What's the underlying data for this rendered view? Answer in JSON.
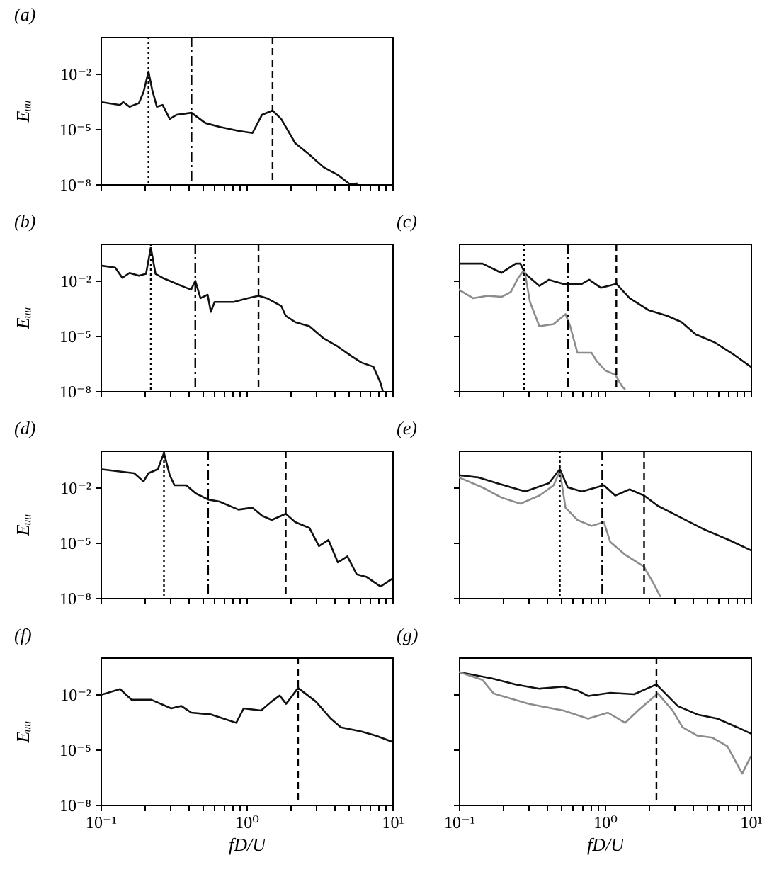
{
  "chart_data": [
    {
      "type": "line",
      "title": "(a)",
      "ylabel": "Eᵤᵤ",
      "log": "xy",
      "xlim": [
        0.1,
        10
      ],
      "ylim": [
        1e-08,
        1
      ],
      "tick_labels": "y",
      "xticks": [
        {
          "value": 0.1,
          "label": null
        },
        {
          "value": 0.2,
          "label": null
        },
        {
          "value": 0.3,
          "label": null
        },
        {
          "value": 0.4,
          "label": null
        },
        {
          "value": 0.5,
          "label": null
        },
        {
          "value": 0.6,
          "label": null
        },
        {
          "value": 0.7,
          "label": null
        },
        {
          "value": 0.8,
          "label": null
        },
        {
          "value": 0.9,
          "label": null
        },
        {
          "value": 1,
          "label": null
        },
        {
          "value": 2,
          "label": null
        },
        {
          "value": 3,
          "label": null
        },
        {
          "value": 4,
          "label": null
        },
        {
          "value": 5,
          "label": null
        },
        {
          "value": 6,
          "label": null
        },
        {
          "value": 7,
          "label": null
        },
        {
          "value": 8,
          "label": null
        },
        {
          "value": 9,
          "label": null
        },
        {
          "value": 10,
          "label": null
        }
      ],
      "yticks": [
        {
          "value": 1e-08,
          "label": "10⁻⁸"
        },
        {
          "value": 1e-05,
          "label": "10⁻⁵"
        },
        {
          "value": 0.01,
          "label": "10⁻²"
        }
      ],
      "series": [
        {
          "color": "#111111",
          "x": [
            0.1,
            0.136,
            0.143,
            0.158,
            0.183,
            0.197,
            0.213,
            0.226,
            0.243,
            0.266,
            0.298,
            0.333,
            0.42,
            0.522,
            0.653,
            0.881,
            1.1,
            1.28,
            1.51,
            1.73,
            2.16,
            2.7,
            3.38,
            4.23,
            5.11,
            5.7
          ],
          "values": [
            0.00029,
            0.0002,
            0.00029,
            0.00016,
            0.00025,
            0.001,
            0.013,
            0.0013,
            0.00016,
            0.0002,
            3.5e-05,
            5.9e-05,
            7.6e-05,
            2.1e-05,
            1.3e-05,
            7.9e-06,
            6e-06,
            5.9e-05,
            0.0001,
            3.5e-05,
            1.7e-06,
            4e-07,
            8.3e-08,
            3.2e-08,
            1e-08,
            1.1e-08
          ]
        }
      ],
      "ref_lines": [
        {
          "axis": "x",
          "value": 0.213,
          "line_style": "dotted"
        },
        {
          "axis": "x",
          "value": 0.42,
          "line_style": "dashdot"
        },
        {
          "axis": "x",
          "value": 1.51,
          "line_style": "dashed"
        }
      ]
    },
    {
      "type": "line",
      "title": "(b)",
      "ylabel": "Eᵤᵤ",
      "log": "xy",
      "xlim": [
        0.1,
        10
      ],
      "ylim": [
        1e-08,
        1
      ],
      "tick_labels": "y",
      "xticks": [
        {
          "value": 0.1,
          "label": null
        },
        {
          "value": 0.2,
          "label": null
        },
        {
          "value": 0.3,
          "label": null
        },
        {
          "value": 0.4,
          "label": null
        },
        {
          "value": 0.5,
          "label": null
        },
        {
          "value": 0.6,
          "label": null
        },
        {
          "value": 0.7,
          "label": null
        },
        {
          "value": 0.8,
          "label": null
        },
        {
          "value": 0.9,
          "label": null
        },
        {
          "value": 1,
          "label": null
        },
        {
          "value": 2,
          "label": null
        },
        {
          "value": 3,
          "label": null
        },
        {
          "value": 4,
          "label": null
        },
        {
          "value": 5,
          "label": null
        },
        {
          "value": 6,
          "label": null
        },
        {
          "value": 7,
          "label": null
        },
        {
          "value": 8,
          "label": null
        },
        {
          "value": 9,
          "label": null
        },
        {
          "value": 10,
          "label": null
        }
      ],
      "yticks": [
        {
          "value": 1e-08,
          "label": "10⁻⁸"
        },
        {
          "value": 1e-05,
          "label": "10⁻⁵"
        },
        {
          "value": 0.01,
          "label": "10⁻²"
        }
      ],
      "series": [
        {
          "color": "#111111",
          "x": [
            0.1,
            0.126,
            0.141,
            0.158,
            0.183,
            0.205,
            0.221,
            0.238,
            0.266,
            0.359,
            0.417,
            0.446,
            0.484,
            0.542,
            0.57,
            0.605,
            0.817,
            1.02,
            1.21,
            1.38,
            1.73,
            1.86,
            2.16,
            2.7,
            3.38,
            4.23,
            5.3,
            6.15,
            7.41,
            8.3,
            8.6
          ],
          "values": [
            0.065,
            0.05,
            0.014,
            0.026,
            0.018,
            0.023,
            0.63,
            0.023,
            0.014,
            0.0051,
            0.0032,
            0.0096,
            0.0011,
            0.0017,
            0.0002,
            0.00069,
            0.00069,
            0.0011,
            0.0015,
            0.0011,
            0.00042,
            0.00012,
            5.5e-05,
            3.3e-05,
            7.2e-06,
            2.6e-06,
            7.4e-07,
            3.5e-07,
            2.1e-07,
            2.8e-08,
            1e-08
          ]
        }
      ],
      "ref_lines": [
        {
          "axis": "x",
          "value": 0.221,
          "line_style": "dotted"
        },
        {
          "axis": "x",
          "value": 0.446,
          "line_style": "dashdot"
        },
        {
          "axis": "x",
          "value": 1.21,
          "line_style": "dashed"
        }
      ]
    },
    {
      "type": "line",
      "title": "(c)",
      "log": "xy",
      "xlim": [
        0.1,
        10
      ],
      "ylim": [
        1e-08,
        1
      ],
      "tick_labels": false,
      "xticks": [
        {
          "value": 0.1,
          "label": null
        },
        {
          "value": 0.2,
          "label": null
        },
        {
          "value": 0.3,
          "label": null
        },
        {
          "value": 0.4,
          "label": null
        },
        {
          "value": 0.5,
          "label": null
        },
        {
          "value": 0.6,
          "label": null
        },
        {
          "value": 0.7,
          "label": null
        },
        {
          "value": 0.8,
          "label": null
        },
        {
          "value": 0.9,
          "label": null
        },
        {
          "value": 1,
          "label": null
        },
        {
          "value": 2,
          "label": null
        },
        {
          "value": 3,
          "label": null
        },
        {
          "value": 4,
          "label": null
        },
        {
          "value": 5,
          "label": null
        },
        {
          "value": 6,
          "label": null
        },
        {
          "value": 7,
          "label": null
        },
        {
          "value": 8,
          "label": null
        },
        {
          "value": 9,
          "label": null
        },
        {
          "value": 10,
          "label": null
        }
      ],
      "yticks": [
        {
          "value": 1e-08,
          "label": null
        },
        {
          "value": 1e-05,
          "label": null
        },
        {
          "value": 0.01,
          "label": null
        }
      ],
      "series": [
        {
          "color": "#111111",
          "x": [
            0.1,
            0.145,
            0.196,
            0.245,
            0.264,
            0.285,
            0.356,
            0.414,
            0.518,
            0.558,
            0.698,
            0.782,
            0.942,
            1.2,
            1.48,
            1.99,
            2.69,
            3.36,
            4.2,
            5.66,
            7.64,
            10
          ],
          "values": [
            0.083,
            0.083,
            0.026,
            0.083,
            0.083,
            0.023,
            0.0051,
            0.011,
            0.0066,
            0.0066,
            0.0066,
            0.011,
            0.004,
            0.0066,
            0.0011,
            0.00025,
            0.00012,
            5.5e-05,
            1.2e-05,
            4.4e-06,
            9.6e-07,
            2.1e-07
          ]
        },
        {
          "color": "#8c8c8c",
          "x": [
            0.1,
            0.125,
            0.157,
            0.196,
            0.227,
            0.255,
            0.281,
            0.307,
            0.356,
            0.446,
            0.538,
            0.579,
            0.649,
            0.811,
            0.875,
            1.01,
            1.18,
            1.32,
            1.37
          ],
          "values": [
            0.0032,
            0.0011,
            0.0015,
            0.0013,
            0.0024,
            0.014,
            0.039,
            0.00069,
            3.3e-05,
            4.3e-05,
            0.00015,
            3.3e-05,
            1.2e-06,
            1.2e-06,
            4.5e-07,
            1.3e-07,
            7.6e-08,
            1.7e-08,
            1.3e-08
          ]
        }
      ],
      "ref_lines": [
        {
          "axis": "x",
          "value": 0.28,
          "line_style": "dotted"
        },
        {
          "axis": "x",
          "value": 0.558,
          "line_style": "dashdot"
        },
        {
          "axis": "x",
          "value": 1.2,
          "line_style": "dashed"
        }
      ]
    },
    {
      "type": "line",
      "title": "(d)",
      "ylabel": "Eᵤᵤ",
      "log": "xy",
      "xlim": [
        0.1,
        10
      ],
      "ylim": [
        1e-08,
        1
      ],
      "tick_labels": "y",
      "xticks": [
        {
          "value": 0.1,
          "label": null
        },
        {
          "value": 0.2,
          "label": null
        },
        {
          "value": 0.3,
          "label": null
        },
        {
          "value": 0.4,
          "label": null
        },
        {
          "value": 0.5,
          "label": null
        },
        {
          "value": 0.6,
          "label": null
        },
        {
          "value": 0.7,
          "label": null
        },
        {
          "value": 0.8,
          "label": null
        },
        {
          "value": 0.9,
          "label": null
        },
        {
          "value": 1,
          "label": null
        },
        {
          "value": 2,
          "label": null
        },
        {
          "value": 3,
          "label": null
        },
        {
          "value": 4,
          "label": null
        },
        {
          "value": 5,
          "label": null
        },
        {
          "value": 6,
          "label": null
        },
        {
          "value": 7,
          "label": null
        },
        {
          "value": 8,
          "label": null
        },
        {
          "value": 9,
          "label": null
        },
        {
          "value": 10,
          "label": null
        }
      ],
      "yticks": [
        {
          "value": 1e-08,
          "label": "10⁻⁸"
        },
        {
          "value": 1e-05,
          "label": "10⁻⁵"
        },
        {
          "value": 0.01,
          "label": "10⁻²"
        }
      ],
      "series": [
        {
          "color": "#111111",
          "x": [
            0.1,
            0.17,
            0.197,
            0.213,
            0.247,
            0.272,
            0.298,
            0.321,
            0.387,
            0.45,
            0.546,
            0.653,
            0.881,
            1.1,
            1.28,
            1.49,
            1.86,
            2.16,
            2.7,
            3.14,
            3.65,
            4.23,
            4.92,
            5.7,
            6.62,
            8.3,
            10
          ],
          "values": [
            0.098,
            0.059,
            0.021,
            0.059,
            0.098,
            0.74,
            0.046,
            0.013,
            0.013,
            0.0047,
            0.0022,
            0.0017,
            0.00062,
            0.00079,
            0.00029,
            0.00017,
            0.00037,
            0.00013,
            6.3e-05,
            6.5e-06,
            1.4e-05,
            8.5e-07,
            1.8e-06,
            1.9e-07,
            1.4e-07,
            4.2e-08,
            1.1e-07
          ]
        }
      ],
      "ref_lines": [
        {
          "axis": "x",
          "value": 0.272,
          "line_style": "dotted"
        },
        {
          "axis": "x",
          "value": 0.546,
          "line_style": "dashdot"
        },
        {
          "axis": "x",
          "value": 1.86,
          "line_style": "dashed"
        }
      ]
    },
    {
      "type": "line",
      "title": "(e)",
      "log": "xy",
      "xlim": [
        0.1,
        10
      ],
      "ylim": [
        1e-08,
        1
      ],
      "tick_labels": false,
      "xticks": [
        {
          "value": 0.1,
          "label": null
        },
        {
          "value": 0.2,
          "label": null
        },
        {
          "value": 0.3,
          "label": null
        },
        {
          "value": 0.4,
          "label": null
        },
        {
          "value": 0.5,
          "label": null
        },
        {
          "value": 0.6,
          "label": null
        },
        {
          "value": 0.7,
          "label": null
        },
        {
          "value": 0.8,
          "label": null
        },
        {
          "value": 0.9,
          "label": null
        },
        {
          "value": 1,
          "label": null
        },
        {
          "value": 2,
          "label": null
        },
        {
          "value": 3,
          "label": null
        },
        {
          "value": 4,
          "label": null
        },
        {
          "value": 5,
          "label": null
        },
        {
          "value": 6,
          "label": null
        },
        {
          "value": 7,
          "label": null
        },
        {
          "value": 8,
          "label": null
        },
        {
          "value": 9,
          "label": null
        },
        {
          "value": 10,
          "label": null
        }
      ],
      "yticks": [
        {
          "value": 1e-08,
          "label": null
        },
        {
          "value": 1e-05,
          "label": null
        },
        {
          "value": 0.01,
          "label": null
        }
      ],
      "series": [
        {
          "color": "#111111",
          "x": [
            0.1,
            0.135,
            0.182,
            0.285,
            0.414,
            0.492,
            0.558,
            0.698,
            0.875,
            0.986,
            1.18,
            1.48,
            1.86,
            2.31,
            3.36,
            4.88,
            7.1,
            10
          ],
          "values": [
            0.046,
            0.035,
            0.017,
            0.006,
            0.017,
            0.098,
            0.01,
            0.006,
            0.01,
            0.013,
            0.0036,
            0.0078,
            0.0036,
            0.001,
            0.00022,
            4.9e-05,
            1.4e-05,
            3.9e-06
          ]
        },
        {
          "color": "#8c8c8c",
          "x": [
            0.1,
            0.145,
            0.196,
            0.264,
            0.356,
            0.446,
            0.492,
            0.538,
            0.649,
            0.811,
            0.986,
            1.09,
            1.37,
            1.85,
            2.14,
            2.4
          ],
          "values": [
            0.035,
            0.01,
            0.0028,
            0.0013,
            0.0036,
            0.013,
            0.076,
            0.00079,
            0.00017,
            8.1e-05,
            0.00013,
            1.1e-05,
            2.3e-06,
            5.1e-07,
            6.9e-08,
            1.2e-08
          ]
        }
      ],
      "ref_lines": [
        {
          "axis": "x",
          "value": 0.492,
          "line_style": "dotted"
        },
        {
          "axis": "x",
          "value": 0.96,
          "line_style": "dashdot"
        },
        {
          "axis": "x",
          "value": 1.86,
          "line_style": "dashed"
        }
      ]
    },
    {
      "type": "line",
      "title": "(f)",
      "ylabel": "Eᵤᵤ",
      "xlabel": "fD/U",
      "log": "xy",
      "xlim": [
        0.1,
        10
      ],
      "ylim": [
        1e-08,
        1
      ],
      "xticks": [
        {
          "value": 0.1,
          "label": "10⁻¹"
        },
        {
          "value": 0.2,
          "label": null
        },
        {
          "value": 0.3,
          "label": null
        },
        {
          "value": 0.4,
          "label": null
        },
        {
          "value": 0.5,
          "label": null
        },
        {
          "value": 0.6,
          "label": null
        },
        {
          "value": 0.7,
          "label": null
        },
        {
          "value": 0.8,
          "label": null
        },
        {
          "value": 0.9,
          "label": null
        },
        {
          "value": 1,
          "label": "10⁰"
        },
        {
          "value": 2,
          "label": null
        },
        {
          "value": 3,
          "label": null
        },
        {
          "value": 4,
          "label": null
        },
        {
          "value": 5,
          "label": null
        },
        {
          "value": 6,
          "label": null
        },
        {
          "value": 7,
          "label": null
        },
        {
          "value": 8,
          "label": null
        },
        {
          "value": 9,
          "label": null
        },
        {
          "value": 10,
          "label": "10¹"
        }
      ],
      "yticks": [
        {
          "value": 1e-08,
          "label": "10⁻⁸"
        },
        {
          "value": 1e-05,
          "label": "10⁻⁵"
        },
        {
          "value": 0.01,
          "label": "10⁻²"
        }
      ],
      "series": [
        {
          "color": "#111111",
          "x": [
            0.1,
            0.136,
            0.163,
            0.223,
            0.305,
            0.358,
            0.419,
            0.574,
            0.851,
            0.957,
            1.26,
            1.48,
            1.69,
            1.87,
            2.26,
            3.0,
            3.79,
            4.44,
            6.1,
            7.71,
            10
          ],
          "values": [
            0.0091,
            0.019,
            0.005,
            0.005,
            0.0017,
            0.0023,
            0.001,
            0.00079,
            0.00028,
            0.0017,
            0.0013,
            0.0039,
            0.0085,
            0.003,
            0.022,
            0.0039,
            0.00047,
            0.00016,
            9.5e-05,
            5.6e-05,
            2.6e-05
          ]
        }
      ],
      "ref_lines": [
        {
          "axis": "x",
          "value": 2.26,
          "line_style": "dashed"
        }
      ]
    },
    {
      "type": "line",
      "title": "(g)",
      "xlabel": "fD/U",
      "log": "xy",
      "xlim": [
        0.1,
        10
      ],
      "ylim": [
        1e-08,
        1
      ],
      "tick_labels": "x",
      "yticks": [
        {
          "value": 1e-08,
          "label": null
        },
        {
          "value": 1e-05,
          "label": null
        },
        {
          "value": 0.01,
          "label": null
        }
      ],
      "xticks": [
        {
          "value": 0.1,
          "label": "10⁻¹"
        },
        {
          "value": 0.2,
          "label": null
        },
        {
          "value": 0.3,
          "label": null
        },
        {
          "value": 0.4,
          "label": null
        },
        {
          "value": 0.5,
          "label": null
        },
        {
          "value": 0.6,
          "label": null
        },
        {
          "value": 0.7,
          "label": null
        },
        {
          "value": 0.8,
          "label": null
        },
        {
          "value": 0.9,
          "label": null
        },
        {
          "value": 1,
          "label": "10⁰"
        },
        {
          "value": 2,
          "label": null
        },
        {
          "value": 3,
          "label": null
        },
        {
          "value": 4,
          "label": null
        },
        {
          "value": 5,
          "label": null
        },
        {
          "value": 6,
          "label": null
        },
        {
          "value": 7,
          "label": null
        },
        {
          "value": 8,
          "label": null
        },
        {
          "value": 9,
          "label": null
        },
        {
          "value": 10,
          "label": "10¹"
        }
      ],
      "series": [
        {
          "color": "#111111",
          "x": [
            0.1,
            0.169,
            0.245,
            0.356,
            0.518,
            0.649,
            0.77,
            1.09,
            1.59,
            2.26,
            3.16,
            4.32,
            5.92,
            8.1,
            10
          ],
          "values": [
            0.16,
            0.072,
            0.034,
            0.02,
            0.026,
            0.016,
            0.008,
            0.012,
            0.01,
            0.034,
            0.0023,
            0.00079,
            0.00047,
            0.00016,
            7.4e-05
          ]
        },
        {
          "color": "#8c8c8c",
          "x": [
            0.1,
            0.145,
            0.173,
            0.3,
            0.52,
            0.769,
            1.05,
            1.38,
            1.69,
            2.31,
            2.92,
            3.41,
            4.32,
            5.47,
            6.92,
            8.75,
            10
          ],
          "values": [
            0.16,
            0.06,
            0.011,
            0.003,
            0.0013,
            0.00047,
            0.001,
            0.00028,
            0.0013,
            0.011,
            0.0013,
            0.00016,
            5.6e-05,
            4.4e-05,
            1.5e-05,
            4.9e-07,
            4.1e-06
          ]
        }
      ],
      "ref_lines": [
        {
          "axis": "x",
          "value": 2.26,
          "line_style": "dashed"
        }
      ]
    }
  ]
}
